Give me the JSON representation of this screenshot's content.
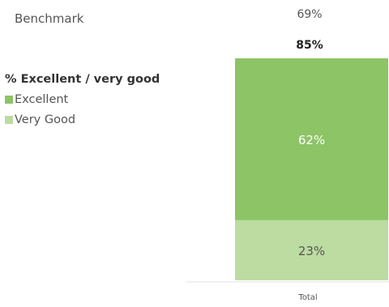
{
  "benchmark": {
    "label": "Benchmark",
    "value": "69%"
  },
  "total_label": "85%",
  "legend": {
    "title": "% Excellent / very good",
    "items": [
      {
        "label": "Excellent",
        "color": "#8dc466"
      },
      {
        "label": "Very Good",
        "color": "#bcdca2"
      }
    ]
  },
  "chart_data": {
    "type": "bar",
    "stacked": true,
    "categories": [
      "Total"
    ],
    "series": [
      {
        "name": "Very Good",
        "values": [
          23
        ],
        "color": "#bcdca2",
        "label": "23%"
      },
      {
        "name": "Excellent",
        "values": [
          62
        ],
        "color": "#8dc466",
        "label": "62%"
      }
    ],
    "total_label": "85%",
    "benchmark": 69,
    "ylim": [
      0,
      85
    ]
  }
}
